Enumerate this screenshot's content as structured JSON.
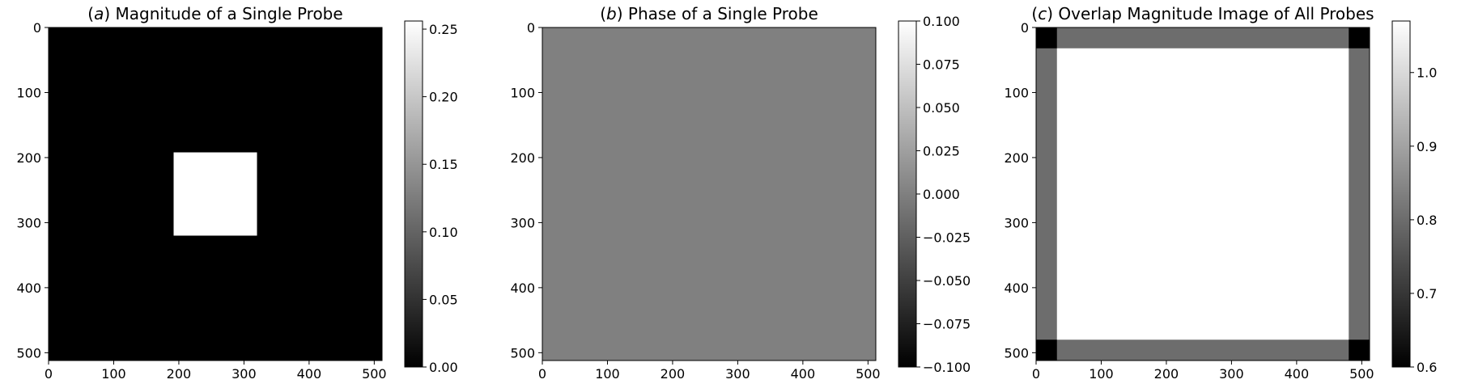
{
  "chart_data": [
    {
      "type": "heatmap",
      "title_prefix": "(a)",
      "title_letter": "a",
      "title": "Magnitude of a Single Probe",
      "colormap": "gray",
      "xlim": [
        0,
        512
      ],
      "ylim": [
        0,
        512
      ],
      "y_inverted": true,
      "xticks": [
        "0",
        "100",
        "200",
        "300",
        "400",
        "500"
      ],
      "yticks": [
        "0",
        "100",
        "200",
        "300",
        "400",
        "500"
      ],
      "background_value": 0.0,
      "regions": [
        {
          "x0": 192,
          "x1": 320,
          "y0": 192,
          "y1": 320,
          "value": 0.256
        }
      ],
      "colorbar": {
        "vmin": 0.0,
        "vmax": 0.256,
        "ticks": [
          {
            "value": 0.0,
            "label": "0.00"
          },
          {
            "value": 0.05,
            "label": "0.05"
          },
          {
            "value": 0.1,
            "label": "0.10"
          },
          {
            "value": 0.15,
            "label": "0.15"
          },
          {
            "value": 0.2,
            "label": "0.20"
          },
          {
            "value": 0.25,
            "label": "0.25"
          }
        ]
      }
    },
    {
      "type": "heatmap",
      "title_prefix": "(b)",
      "title_letter": "b",
      "title": "Phase of a Single Probe",
      "colormap": "gray",
      "xlim": [
        0,
        512
      ],
      "ylim": [
        0,
        512
      ],
      "y_inverted": true,
      "xticks": [
        "0",
        "100",
        "200",
        "300",
        "400",
        "500"
      ],
      "yticks": [
        "0",
        "100",
        "200",
        "300",
        "400",
        "500"
      ],
      "background_value": 0.0,
      "regions": [],
      "colorbar": {
        "vmin": -0.1,
        "vmax": 0.1,
        "ticks": [
          {
            "value": -0.1,
            "label": "−0.100"
          },
          {
            "value": -0.075,
            "label": "−0.075"
          },
          {
            "value": -0.05,
            "label": "−0.050"
          },
          {
            "value": -0.025,
            "label": "−0.025"
          },
          {
            "value": 0.0,
            "label": "0.000"
          },
          {
            "value": 0.025,
            "label": "0.025"
          },
          {
            "value": 0.05,
            "label": "0.050"
          },
          {
            "value": 0.075,
            "label": "0.075"
          },
          {
            "value": 0.1,
            "label": "0.100"
          }
        ]
      }
    },
    {
      "type": "heatmap",
      "title_prefix": "(c)",
      "title_letter": "c",
      "title": "Overlap Magnitude Image of All Probes",
      "colormap": "gray",
      "xlim": [
        0,
        512
      ],
      "ylim": [
        0,
        512
      ],
      "y_inverted": true,
      "xticks": [
        "0",
        "100",
        "200",
        "300",
        "400",
        "500"
      ],
      "yticks": [
        "0",
        "100",
        "200",
        "300",
        "400",
        "500"
      ],
      "background_value": 1.07,
      "regions": [
        {
          "x0": 0,
          "x1": 32,
          "y0": 0,
          "y1": 512,
          "value": 0.8
        },
        {
          "x0": 480,
          "x1": 512,
          "y0": 0,
          "y1": 512,
          "value": 0.8
        },
        {
          "x0": 0,
          "x1": 512,
          "y0": 0,
          "y1": 32,
          "value": 0.8
        },
        {
          "x0": 0,
          "x1": 512,
          "y0": 480,
          "y1": 512,
          "value": 0.8
        },
        {
          "x0": 0,
          "x1": 32,
          "y0": 0,
          "y1": 32,
          "value": 0.6
        },
        {
          "x0": 480,
          "x1": 512,
          "y0": 0,
          "y1": 32,
          "value": 0.6
        },
        {
          "x0": 0,
          "x1": 32,
          "y0": 480,
          "y1": 512,
          "value": 0.6
        },
        {
          "x0": 480,
          "x1": 512,
          "y0": 480,
          "y1": 512,
          "value": 0.6
        }
      ],
      "colorbar": {
        "vmin": 0.6,
        "vmax": 1.07,
        "ticks": [
          {
            "value": 0.6,
            "label": "0.6"
          },
          {
            "value": 0.7,
            "label": "0.7"
          },
          {
            "value": 0.8,
            "label": "0.8"
          },
          {
            "value": 0.9,
            "label": "0.9"
          },
          {
            "value": 1.0,
            "label": "1.0"
          }
        ]
      }
    }
  ]
}
